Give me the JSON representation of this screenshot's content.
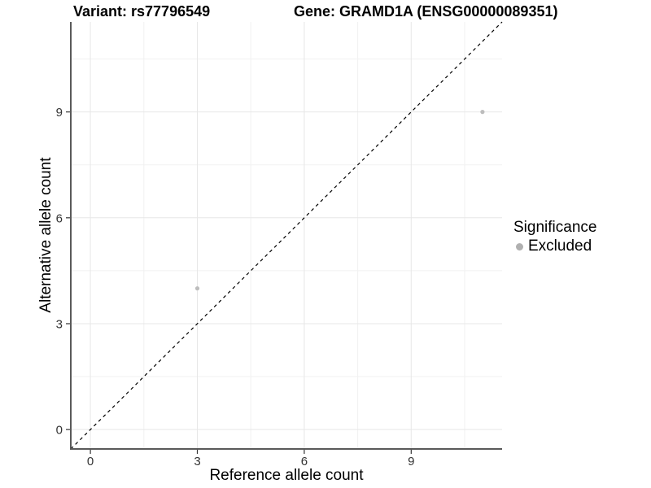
{
  "chart_data": {
    "type": "scatter",
    "titles": {
      "left": "Variant: rs77796549",
      "right": "Gene: GRAMD1A (ENSG00000089351)"
    },
    "xlabel": "Reference allele count",
    "ylabel": "Alternative allele count",
    "xlim": [
      -0.55,
      11.55
    ],
    "ylim": [
      -0.55,
      11.55
    ],
    "x_ticks": [
      0,
      3,
      6,
      9
    ],
    "y_ticks": [
      0,
      3,
      6,
      9
    ],
    "x_minor_ticks": [
      1.5,
      4.5,
      7.5,
      10.5
    ],
    "y_minor_ticks": [
      1.5,
      4.5,
      7.5,
      10.5
    ],
    "grid": true,
    "legend_position": "right",
    "series": [
      {
        "name": "Excluded",
        "marker": "circle",
        "color": "#bdbdbd",
        "points": [
          {
            "x": 3,
            "y": 4
          },
          {
            "x": 11,
            "y": 9
          }
        ]
      }
    ],
    "reference_line": {
      "type": "identity y=x",
      "style": "dashed",
      "color": "#000000"
    }
  },
  "legend": {
    "title": "Significance",
    "items": [
      {
        "label": "Excluded",
        "color": "#b0b0b0"
      }
    ]
  },
  "colors": {
    "background": "#ffffff",
    "axis_line": "#5a5a5a",
    "grid_major": "#e7e7e7",
    "grid_minor": "#f1f1f1",
    "tick": "#333333",
    "tick_label": "#333333",
    "text": "#000000"
  }
}
